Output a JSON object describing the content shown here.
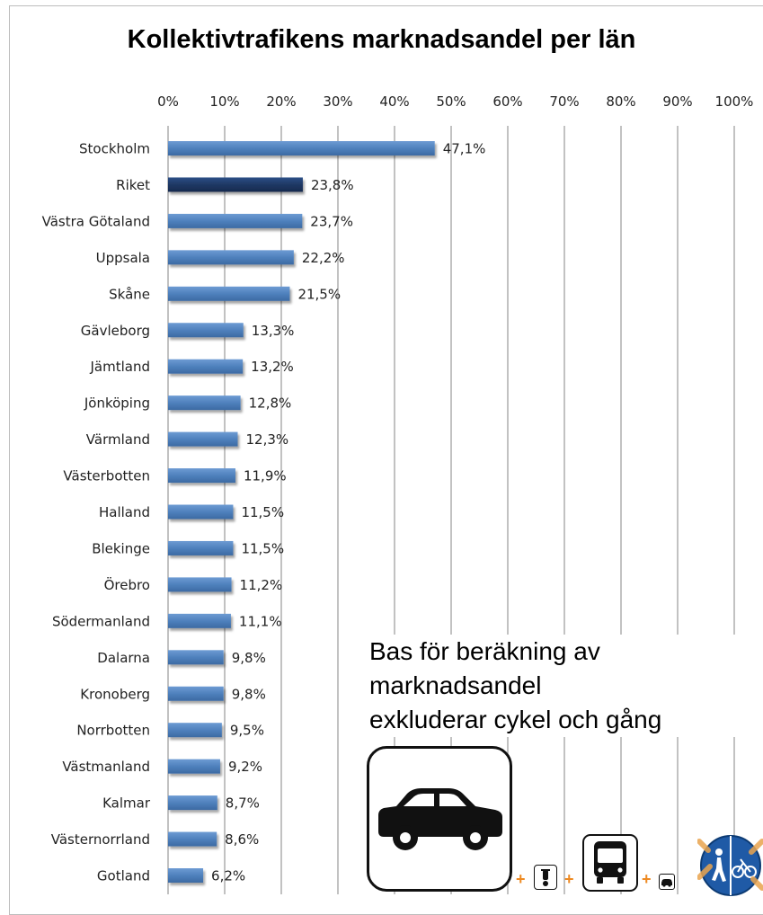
{
  "chart_data": {
    "type": "bar",
    "orientation": "horizontal",
    "title": "Kollektivtrafikens marknadsandel per län",
    "xlabel": "",
    "ylabel": "",
    "x_ticks": [
      "0%",
      "10%",
      "20%",
      "30%",
      "40%",
      "50%",
      "60%",
      "70%",
      "80%",
      "90%",
      "100%"
    ],
    "xlim": [
      0,
      100
    ],
    "grid": true,
    "legend": "none",
    "categories": [
      "Stockholm",
      "Riket",
      "Västra Götaland",
      "Uppsala",
      "Skåne",
      "Gävleborg",
      "Jämtland",
      "Jönköping",
      "Värmland",
      "Västerbotten",
      "Halland",
      "Blekinge",
      "Örebro",
      "Södermanland",
      "Dalarna",
      "Kronoberg",
      "Norrbotten",
      "Västmanland",
      "Kalmar",
      "Västernorrland",
      "Gotland"
    ],
    "values": [
      47.1,
      23.8,
      23.7,
      22.2,
      21.5,
      13.3,
      13.2,
      12.8,
      12.3,
      11.9,
      11.5,
      11.5,
      11.2,
      11.1,
      9.8,
      9.8,
      9.5,
      9.2,
      8.7,
      8.6,
      6.2
    ],
    "data_labels": [
      "47,1%",
      "23,8%",
      "23,7%",
      "22,2%",
      "21,5%",
      "13,3%",
      "13,2%",
      "12,8%",
      "12,3%",
      "11,9%",
      "11,5%",
      "11,5%",
      "11,2%",
      "11,1%",
      "9,8%",
      "9,8%",
      "9,5%",
      "9,2%",
      "8,7%",
      "8,6%",
      "6,2%"
    ],
    "highlight_category": "Riket",
    "colors": {
      "bar": "#4f81bd",
      "bar_highlight": "#1f3864",
      "grid": "#9a9a9a"
    }
  },
  "annotation": {
    "lines": [
      "Bas för beräkning av",
      "marknadsandel",
      "exkluderar cykel och gång"
    ]
  },
  "icons": {
    "plus_sign": "+",
    "plus_color": "#ee8a22",
    "names": [
      "car-icon",
      "moped-icon",
      "bus-icon",
      "small-car-icon",
      "walk-bike-icon"
    ]
  }
}
